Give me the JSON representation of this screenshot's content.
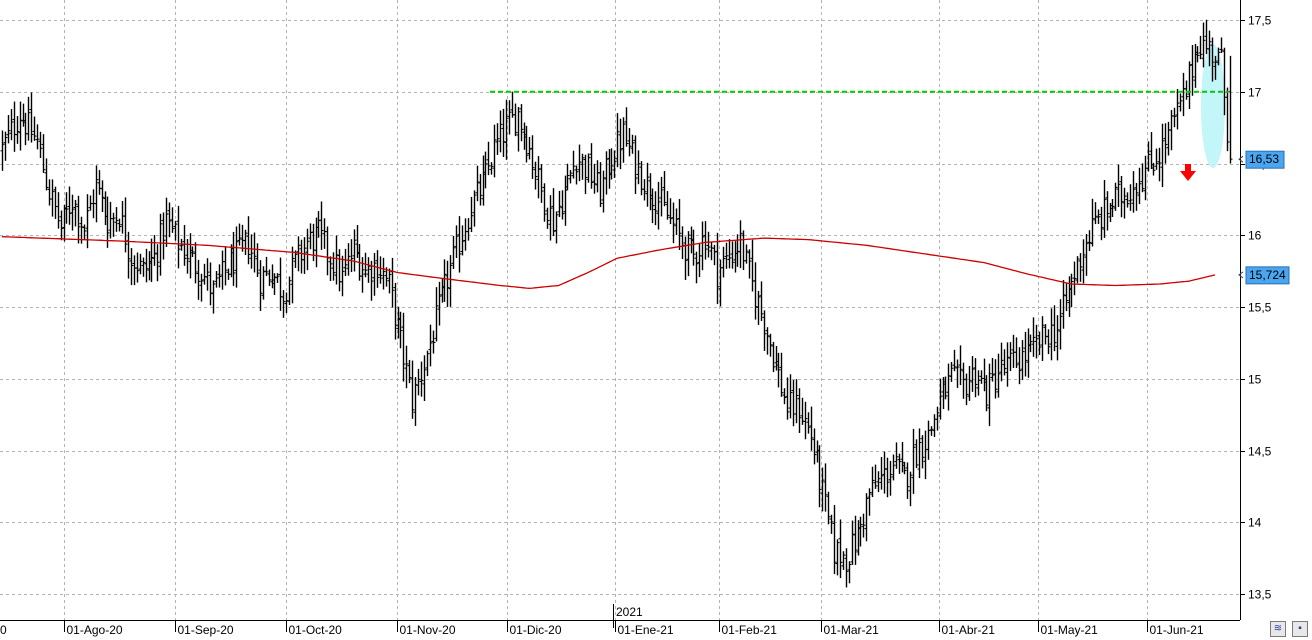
{
  "chart_data": {
    "type": "ohlc",
    "title": "",
    "xlabel": "",
    "ylabel": "",
    "ylim": [
      13.3,
      17.6
    ],
    "grid": true,
    "y_ticks": [
      "13,5",
      "14",
      "14,5",
      "15",
      "15,5",
      "16",
      "16,5",
      "17",
      "17,5"
    ],
    "y_tick_values": [
      13.5,
      14,
      14.5,
      15,
      15.5,
      16,
      16.5,
      17,
      17.5
    ],
    "x_ticks": [
      "01-Ago-20",
      "01-Sep-20",
      "01-Oct-20",
      "01-Nov-20",
      "01-Dic-20",
      "01-Ene-21",
      "01-Feb-21",
      "01-Mar-21",
      "01-Abr-21",
      "01-May-21",
      "01-Jun-21"
    ],
    "x_edge_label": "0",
    "year_marker": "2021",
    "last_price_label": "16,53",
    "last_price": 16.53,
    "ma_label": "15,724",
    "ma_value": 15.724,
    "resistance_level": 17.0,
    "resistance_color": "#00cc00",
    "ma_color": "#cc0000",
    "arrow_color": "#ff0000",
    "highlight_color": "#b8f4f8",
    "label_box_color": "#4aa6f0",
    "price_path": [
      [
        0,
        16.6
      ],
      [
        6,
        16.85
      ],
      [
        12,
        16.65
      ],
      [
        16,
        16.3
      ],
      [
        20,
        16.05
      ],
      [
        24,
        16.25
      ],
      [
        28,
        16.05
      ],
      [
        32,
        16.35
      ],
      [
        36,
        16.1
      ],
      [
        40,
        16.15
      ],
      [
        44,
        15.85
      ],
      [
        48,
        15.75
      ],
      [
        52,
        15.85
      ],
      [
        56,
        16.1
      ],
      [
        60,
        15.95
      ],
      [
        64,
        15.85
      ],
      [
        68,
        15.75
      ],
      [
        72,
        15.6
      ],
      [
        76,
        15.75
      ],
      [
        80,
        15.85
      ],
      [
        84,
        15.95
      ],
      [
        88,
        15.7
      ],
      [
        92,
        15.75
      ],
      [
        96,
        15.6
      ],
      [
        100,
        15.8
      ],
      [
        104,
        15.95
      ],
      [
        108,
        16.0
      ],
      [
        112,
        15.85
      ],
      [
        116,
        15.7
      ],
      [
        120,
        15.9
      ],
      [
        124,
        15.75
      ],
      [
        128,
        15.8
      ],
      [
        132,
        15.65
      ],
      [
        136,
        15.25
      ],
      [
        140,
        14.85
      ],
      [
        144,
        15.1
      ],
      [
        148,
        15.4
      ],
      [
        152,
        15.7
      ],
      [
        156,
        15.95
      ],
      [
        160,
        16.2
      ],
      [
        164,
        16.35
      ],
      [
        168,
        16.6
      ],
      [
        172,
        16.75
      ],
      [
        176,
        16.85
      ],
      [
        180,
        16.6
      ],
      [
        184,
        16.3
      ],
      [
        188,
        16.1
      ],
      [
        192,
        16.3
      ],
      [
        196,
        16.55
      ],
      [
        200,
        16.45
      ],
      [
        204,
        16.3
      ],
      [
        208,
        16.55
      ],
      [
        212,
        16.7
      ],
      [
        216,
        16.5
      ],
      [
        220,
        16.35
      ],
      [
        224,
        16.25
      ],
      [
        228,
        16.1
      ],
      [
        232,
        15.95
      ],
      [
        236,
        15.85
      ],
      [
        240,
        16.0
      ],
      [
        244,
        15.75
      ],
      [
        248,
        15.85
      ],
      [
        252,
        15.95
      ],
      [
        256,
        15.65
      ],
      [
        260,
        15.4
      ],
      [
        264,
        15.1
      ],
      [
        268,
        14.8
      ],
      [
        272,
        14.8
      ],
      [
        276,
        14.6
      ],
      [
        280,
        14.2
      ],
      [
        284,
        13.8
      ],
      [
        288,
        13.75
      ],
      [
        292,
        13.9
      ],
      [
        296,
        14.2
      ],
      [
        300,
        14.3
      ],
      [
        304,
        14.4
      ],
      [
        308,
        14.3
      ],
      [
        312,
        14.5
      ],
      [
        316,
        14.6
      ],
      [
        320,
        14.85
      ],
      [
        324,
        15.0
      ],
      [
        328,
        14.95
      ],
      [
        332,
        15.05
      ],
      [
        336,
        14.9
      ],
      [
        340,
        15.05
      ],
      [
        344,
        15.1
      ],
      [
        348,
        15.15
      ],
      [
        352,
        15.2
      ],
      [
        356,
        15.3
      ],
      [
        360,
        15.35
      ],
      [
        364,
        15.6
      ],
      [
        368,
        15.85
      ],
      [
        372,
        16.05
      ],
      [
        376,
        16.15
      ],
      [
        380,
        16.25
      ],
      [
        384,
        16.3
      ],
      [
        388,
        16.4
      ],
      [
        392,
        16.5
      ],
      [
        396,
        16.6
      ],
      [
        400,
        16.8
      ],
      [
        404,
        17.0
      ],
      [
        408,
        17.35
      ],
      [
        412,
        17.3
      ],
      [
        416,
        17.2
      ],
      [
        419,
        16.53
      ]
    ],
    "ma_path": [
      [
        0,
        15.99
      ],
      [
        40,
        15.96
      ],
      [
        70,
        15.93
      ],
      [
        100,
        15.88
      ],
      [
        120,
        15.82
      ],
      [
        135,
        15.74
      ],
      [
        150,
        15.7
      ],
      [
        170,
        15.65
      ],
      [
        180,
        15.63
      ],
      [
        190,
        15.65
      ],
      [
        200,
        15.74
      ],
      [
        210,
        15.84
      ],
      [
        225,
        15.9
      ],
      [
        240,
        15.95
      ],
      [
        260,
        15.98
      ],
      [
        275,
        15.97
      ],
      [
        295,
        15.93
      ],
      [
        315,
        15.87
      ],
      [
        335,
        15.81
      ],
      [
        350,
        15.73
      ],
      [
        365,
        15.66
      ],
      [
        380,
        15.65
      ],
      [
        395,
        15.66
      ],
      [
        405,
        15.68
      ],
      [
        414,
        15.724
      ]
    ]
  }
}
